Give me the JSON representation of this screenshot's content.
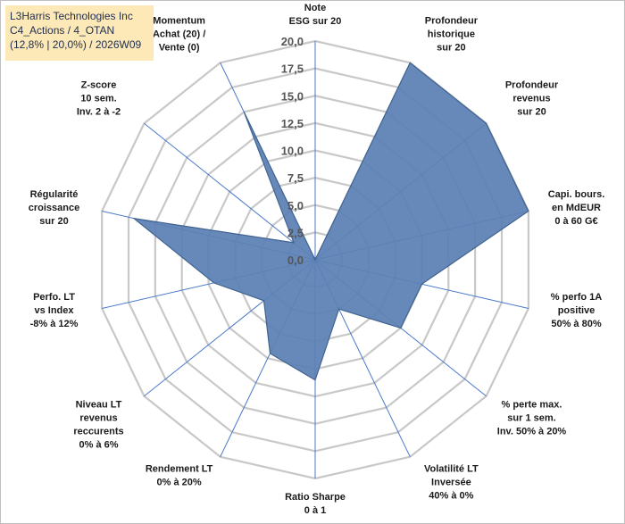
{
  "header": {
    "line1": "L3Harris Technologies Inc",
    "line2": "C4_Actions / 4_OTAN",
    "line3": "(12,8% | 20,0%) / 2026W09"
  },
  "chart_data": {
    "type": "radar",
    "rmax": 20,
    "ticks": [
      "0,0",
      "2,5",
      "5,0",
      "7,5",
      "10,0",
      "12,5",
      "15,0",
      "17,5",
      "20,0"
    ],
    "axes": [
      [
        "Note",
        "ESG sur 20"
      ],
      [
        "Profondeur",
        "historique",
        "sur 20"
      ],
      [
        "Profondeur",
        "revenus",
        "sur 20"
      ],
      [
        "Capi. bours.",
        "en MdEUR",
        "0 à 60 G€"
      ],
      [
        "% perfo 1A",
        "positive",
        "50% à 80%"
      ],
      [
        "% perte max.",
        "sur 1 sem.",
        "Inv. 50% à 20%"
      ],
      [
        "Volatilité LT",
        "Inversée",
        "40% à 0%"
      ],
      [
        "Ratio Sharpe",
        "0 à 1"
      ],
      [
        "Rendement LT",
        "0% à 20%"
      ],
      [
        "Niveau LT",
        "revenus",
        "reccurents",
        "0% à 6%"
      ],
      [
        "Perfo. LT",
        "vs Index",
        "-8% à 12%"
      ],
      [
        "Régularité",
        "croissance",
        "sur 20"
      ],
      [
        "Z-score",
        "10 sem.",
        "Inv. 2 à -2"
      ],
      [
        "Momentum",
        "Achat (20) /",
        "Vente (0)"
      ]
    ],
    "values": [
      0,
      20,
      20,
      20,
      10,
      10,
      5,
      11,
      9.5,
      6,
      9.5,
      17,
      2.5,
      15
    ],
    "colors": {
      "fill": "#5b80b5",
      "stroke": "#41638f",
      "grid": "#c8c8c8",
      "spoke": "#4a7ac8"
    }
  }
}
